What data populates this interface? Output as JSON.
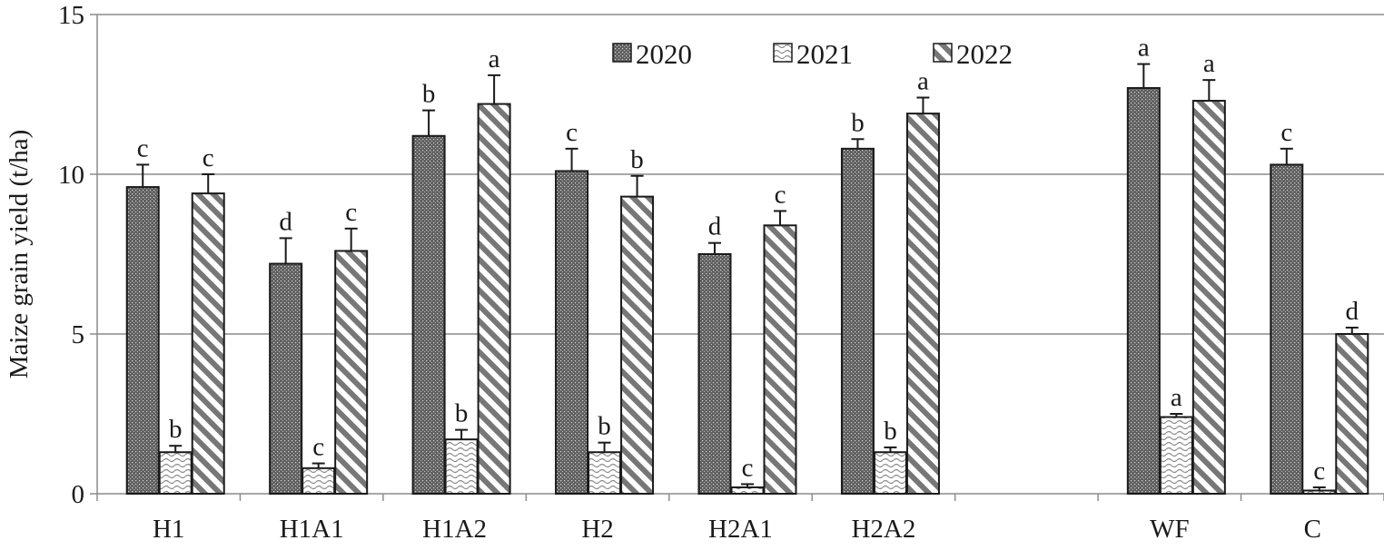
{
  "chart_data": {
    "type": "bar",
    "ylabel": "Maize grain yield (t/ha)",
    "ylim": [
      0,
      15
    ],
    "yticks": [
      0,
      5,
      10,
      15
    ],
    "grid": true,
    "legend_position": "top-center",
    "categories": [
      "H1",
      "H1A1",
      "H1A2",
      "H2",
      "H2A1",
      "H2A2",
      "",
      "WF",
      "C"
    ],
    "series": [
      {
        "name": "2020",
        "pattern": "dotted",
        "values": [
          9.6,
          7.2,
          11.2,
          10.1,
          7.5,
          10.8,
          null,
          12.7,
          10.3
        ],
        "errors": [
          0.7,
          0.8,
          0.8,
          0.7,
          0.35,
          0.3,
          null,
          0.75,
          0.5
        ],
        "letters": [
          "c",
          "d",
          "b",
          "c",
          "d",
          "b",
          "",
          "a",
          "c"
        ]
      },
      {
        "name": "2021",
        "pattern": "wavy",
        "values": [
          1.3,
          0.8,
          1.7,
          1.3,
          0.2,
          1.3,
          null,
          2.4,
          0.1
        ],
        "errors": [
          0.2,
          0.15,
          0.3,
          0.3,
          0.1,
          0.15,
          null,
          0.1,
          0.1
        ],
        "letters": [
          "b",
          "c",
          "b",
          "b",
          "c",
          "b",
          "",
          "a",
          "c"
        ]
      },
      {
        "name": "2022",
        "pattern": "diagonal",
        "values": [
          9.4,
          7.6,
          12.2,
          9.3,
          8.4,
          11.9,
          null,
          12.3,
          5.0
        ],
        "errors": [
          0.6,
          0.7,
          0.9,
          0.65,
          0.45,
          0.5,
          null,
          0.65,
          0.2
        ],
        "letters": [
          "c",
          "c",
          "a",
          "b",
          "c",
          "a",
          "",
          "a",
          "d"
        ]
      }
    ]
  },
  "colors": {
    "bar_stroke": "#1a1a1a",
    "gridline": "#8c8c8c",
    "pattern_dark": "#555555",
    "pattern_stripe": "#6e6e6e",
    "text": "#1a1a1a"
  }
}
